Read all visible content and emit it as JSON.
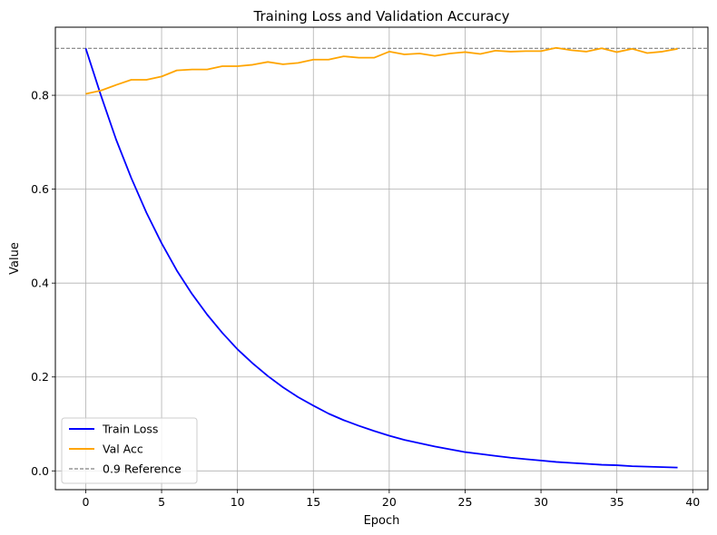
{
  "chart_data": {
    "type": "line",
    "title": "Training Loss and Validation Accuracy",
    "xlabel": "Epoch",
    "ylabel": "Value",
    "xlim": [
      -2,
      41
    ],
    "ylim": [
      -0.04,
      0.945
    ],
    "xticks": [
      0,
      5,
      10,
      15,
      20,
      25,
      30,
      35,
      40
    ],
    "yticks": [
      0.0,
      0.2,
      0.4,
      0.6,
      0.8
    ],
    "ytick_labels": [
      "0.0",
      "0.2",
      "0.4",
      "0.6",
      "0.8"
    ],
    "grid": true,
    "legend_position": "lower-left",
    "x": [
      0,
      1,
      2,
      3,
      4,
      5,
      6,
      7,
      8,
      9,
      10,
      11,
      12,
      13,
      14,
      15,
      16,
      17,
      18,
      19,
      20,
      21,
      22,
      23,
      24,
      25,
      26,
      27,
      28,
      29,
      30,
      31,
      32,
      33,
      34,
      35,
      36,
      37,
      38,
      39
    ],
    "series": [
      {
        "name": "Train Loss",
        "color": "#0000ff",
        "values": [
          0.9,
          0.8,
          0.706,
          0.624,
          0.55,
          0.485,
          0.427,
          0.377,
          0.333,
          0.294,
          0.259,
          0.229,
          0.202,
          0.178,
          0.157,
          0.139,
          0.122,
          0.108,
          0.096,
          0.085,
          0.075,
          0.066,
          0.059,
          0.052,
          0.046,
          0.04,
          0.036,
          0.032,
          0.028,
          0.025,
          0.022,
          0.019,
          0.017,
          0.015,
          0.013,
          0.012,
          0.01,
          0.009,
          0.008,
          0.007
        ]
      },
      {
        "name": "Val Acc",
        "color": "#ffa500",
        "values": [
          0.803,
          0.81,
          0.822,
          0.833,
          0.833,
          0.84,
          0.853,
          0.855,
          0.855,
          0.862,
          0.862,
          0.865,
          0.871,
          0.866,
          0.869,
          0.876,
          0.876,
          0.883,
          0.88,
          0.88,
          0.893,
          0.887,
          0.889,
          0.884,
          0.889,
          0.892,
          0.888,
          0.895,
          0.893,
          0.894,
          0.894,
          0.901,
          0.896,
          0.893,
          0.9,
          0.892,
          0.899,
          0.89,
          0.893,
          0.899
        ]
      }
    ],
    "reference_line": {
      "name": "0.9 Reference",
      "y": 0.9,
      "color": "#808080",
      "style": "dashed"
    }
  }
}
